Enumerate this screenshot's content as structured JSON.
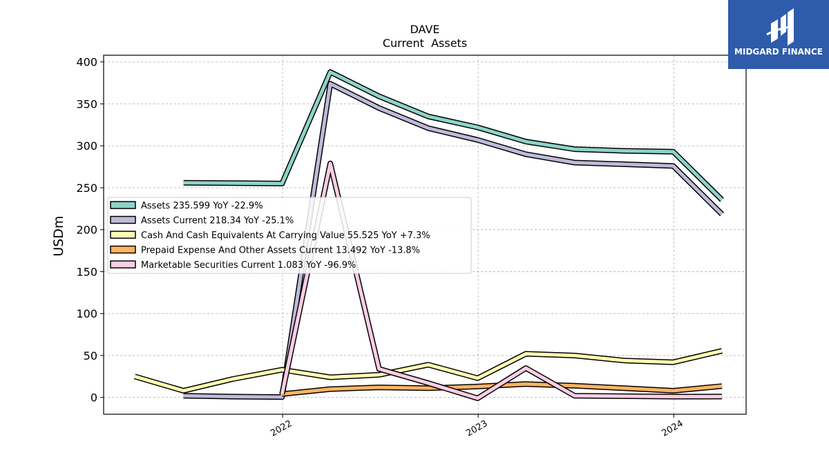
{
  "chart_data": {
    "type": "line",
    "title": "DAVE",
    "subtitle": "Current  Assets",
    "ylabel": "USDm",
    "xlabel": "",
    "ylim": [
      -20,
      408
    ],
    "xlim": [
      "2021-02-01",
      "2024-05-15"
    ],
    "yticks": [
      0,
      50,
      100,
      150,
      200,
      250,
      300,
      350,
      400
    ],
    "xticks": [
      {
        "label": "2022",
        "date": "2022-01-01"
      },
      {
        "label": "2023",
        "date": "2023-01-01"
      },
      {
        "label": "2024",
        "date": "2024-01-01"
      }
    ],
    "grid": true,
    "legend_position": "center-left",
    "series": [
      {
        "name": "Assets",
        "legend": "Assets  235.599 YoY -22.9%",
        "color": "#8dd3c7",
        "points": [
          [
            "2021-06-30",
            256
          ],
          [
            "2021-09-30",
            255.5
          ],
          [
            "2021-12-31",
            255
          ],
          [
            "2022-03-31",
            388
          ],
          [
            "2022-06-30",
            359
          ],
          [
            "2022-09-30",
            335
          ],
          [
            "2022-12-31",
            322
          ],
          [
            "2023-03-31",
            305
          ],
          [
            "2023-06-30",
            296
          ],
          [
            "2023-09-30",
            294
          ],
          [
            "2023-12-31",
            293
          ],
          [
            "2024-03-31",
            235.599
          ]
        ]
      },
      {
        "name": "Assets Current",
        "legend": "Assets Current  218.34 YoY -25.1%",
        "color": "#bebada",
        "points": [
          [
            "2021-06-30",
            2
          ],
          [
            "2021-09-30",
            1
          ],
          [
            "2021-12-31",
            0.5
          ],
          [
            "2022-03-31",
            374
          ],
          [
            "2022-06-30",
            345
          ],
          [
            "2022-09-30",
            321
          ],
          [
            "2022-12-31",
            307
          ],
          [
            "2023-03-31",
            290
          ],
          [
            "2023-06-30",
            280
          ],
          [
            "2023-09-30",
            278
          ],
          [
            "2023-12-31",
            276
          ],
          [
            "2024-03-31",
            218.34
          ]
        ]
      },
      {
        "name": "Cash And Cash Equivalents At Carrying Value",
        "legend": "Cash And Cash Equivalents At Carrying Value  55.525 YoY +7.3%",
        "color": "#ffffb3",
        "points": [
          [
            "2021-03-31",
            25
          ],
          [
            "2021-06-30",
            8
          ],
          [
            "2021-09-30",
            22
          ],
          [
            "2021-12-31",
            33
          ],
          [
            "2022-03-31",
            24
          ],
          [
            "2022-06-30",
            27
          ],
          [
            "2022-09-30",
            39
          ],
          [
            "2022-12-31",
            23
          ],
          [
            "2023-03-31",
            52
          ],
          [
            "2023-06-30",
            50
          ],
          [
            "2023-09-30",
            44
          ],
          [
            "2023-12-31",
            42
          ],
          [
            "2024-03-31",
            55.525
          ]
        ]
      },
      {
        "name": "Prepaid Expense And Other Assets Current",
        "legend": "Prepaid Expense And Other Assets Current  13.492 YoY -13.8%",
        "color": "#fdb462",
        "points": [
          [
            "2021-12-31",
            4
          ],
          [
            "2022-03-31",
            10
          ],
          [
            "2022-06-30",
            12
          ],
          [
            "2022-09-30",
            11
          ],
          [
            "2022-12-31",
            13
          ],
          [
            "2023-03-31",
            16
          ],
          [
            "2023-06-30",
            14
          ],
          [
            "2023-09-30",
            11
          ],
          [
            "2023-12-31",
            8
          ],
          [
            "2024-03-31",
            13.492
          ]
        ]
      },
      {
        "name": "Marketable Securities Current",
        "legend": "Marketable Securities Current  1.083 YoY -96.9%",
        "color": "#fccde5",
        "points": [
          [
            "2021-12-31",
            4
          ],
          [
            "2022-03-31",
            279
          ],
          [
            "2022-06-30",
            34
          ],
          [
            "2022-09-30",
            17
          ],
          [
            "2022-12-31",
            -1
          ],
          [
            "2023-03-31",
            35
          ],
          [
            "2023-06-30",
            2
          ],
          [
            "2023-09-30",
            1.5
          ],
          [
            "2023-12-31",
            1
          ],
          [
            "2024-03-31",
            1.083
          ]
        ]
      }
    ]
  },
  "logo": {
    "text": "MIDGARD FINANCE",
    "background": "#2e5cab",
    "icon": "midgard-logo-icon"
  }
}
